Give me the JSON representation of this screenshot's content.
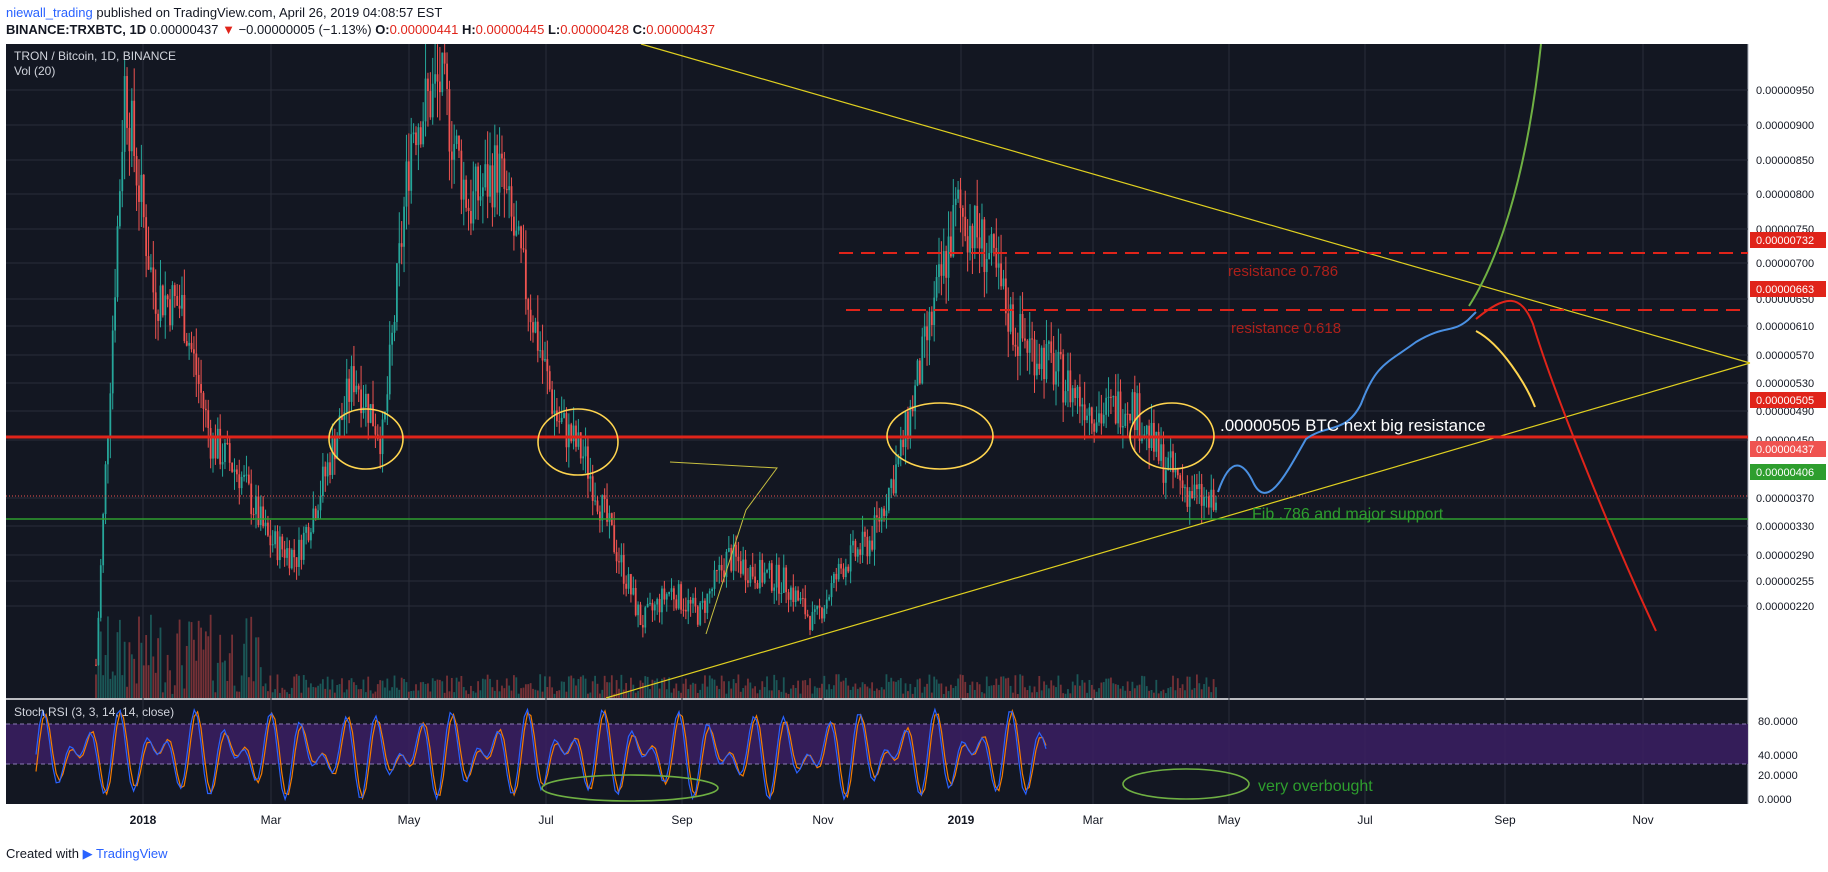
{
  "header": {
    "user": "niewall_trading",
    "published": "published on TradingView.com, April 26, 2019 04:08:57 EST",
    "symbol": "BINANCE:TRXBTC, 1D",
    "last": "0.00000437",
    "arrow": "▼",
    "change": "−0.00000005 (−1.13%)",
    "o_label": "O:",
    "o": "0.00000441",
    "h_label": "H:",
    "h": "0.00000445",
    "l_label": "L:",
    "l": "0.00000428",
    "c_label": "C:",
    "c": "0.00000437"
  },
  "chart": {
    "pane_title": "TRON / Bitcoin, 1D, BINANCE",
    "vol_label": "Vol (20)",
    "rsi_label": "Stoch RSI (3, 3, 14, 14, close)",
    "price_ticks": [
      "0.00000950",
      "0.00000900",
      "0.00000850",
      "0.00000800",
      "0.00000750",
      "0.00000700",
      "0.00000650",
      "0.00000610",
      "0.00000570",
      "0.00000530",
      "0.00000490",
      "0.00000450",
      "0.00000370",
      "0.00000330",
      "0.00000290",
      "0.00000255",
      "0.00000220"
    ],
    "time_ticks": [
      "2018",
      "Mar",
      "May",
      "Jul",
      "Sep",
      "Nov",
      "2019",
      "Mar",
      "May",
      "Jul",
      "Sep",
      "Nov"
    ],
    "rsi_ticks": [
      "80.0000",
      "40.0000",
      "20.0000",
      "0.0000"
    ],
    "price_badges": [
      {
        "text": "0.00000732",
        "color": "#e0241a"
      },
      {
        "text": "0.00000663",
        "color": "#e0241a"
      },
      {
        "text": "0.00000505",
        "color": "#e0241a"
      },
      {
        "text": "0.00000437",
        "color": "#ef5350"
      },
      {
        "text": "0.00000406",
        "color": "#2e9e2e"
      }
    ],
    "annotations": {
      "resistance_786": "resistance 0.786",
      "resistance_618": "resistance 0.618",
      "next_resistance": ".00000505 BTC next big resistance",
      "fib_support": "Fib .786 and major support",
      "overbought": "very overbought"
    },
    "colors": {
      "background": "#131722",
      "grid": "#2a2e39",
      "up": "#26a69a",
      "down": "#ef5350",
      "resistance_dash": "#e0241a",
      "support_line": "#2e9e2e",
      "trendline": "#e0d020",
      "rsi_band": "#3b1f63",
      "projection_blue": "#4a90e2",
      "projection_green": "#6fb043",
      "projection_red": "#e0241a",
      "projection_yellow": "#ffd54f"
    }
  },
  "chart_data": {
    "type": "candlestick",
    "x": [
      "2017-12-20",
      "2018-01-05",
      "2018-01-10",
      "2018-01-18",
      "2018-02-01",
      "2018-02-15",
      "2018-03-01",
      "2018-03-15",
      "2018-04-01",
      "2018-04-10",
      "2018-04-20",
      "2018-05-01",
      "2018-05-10",
      "2018-05-20",
      "2018-06-01",
      "2018-06-15",
      "2018-07-01",
      "2018-07-15",
      "2018-08-01",
      "2018-08-15",
      "2018-09-01",
      "2018-09-15",
      "2018-10-01",
      "2018-10-15",
      "2018-11-01",
      "2018-11-15",
      "2018-12-01",
      "2018-12-15",
      "2018-12-25",
      "2019-01-05",
      "2019-01-15",
      "2019-01-25",
      "2019-02-05",
      "2019-02-15",
      "2019-03-01",
      "2019-03-15",
      "2019-04-01",
      "2019-04-10",
      "2019-04-20",
      "2019-04-26"
    ],
    "close": [
      2.5e-06,
      9.5e-06,
      7e-06,
      6.8e-06,
      5.2e-06,
      4.8e-06,
      4e-06,
      3.8e-06,
      4.8e-06,
      6e-06,
      5.2e-06,
      9e-06,
      9.5e-06,
      8e-06,
      8.5e-06,
      7e-06,
      5.5e-06,
      5e-06,
      4e-06,
      3e-06,
      3.4e-06,
      3.1e-06,
      3.8e-06,
      3.6e-06,
      3.5e-06,
      3e-06,
      3.7e-06,
      4e-06,
      5e-06,
      6.5e-06,
      8e-06,
      7.5e-06,
      6.5e-06,
      6.2e-06,
      5.8e-06,
      5.5e-06,
      5.7e-06,
      5e-06,
      4.6e-06,
      4.37e-06
    ],
    "ylim": [
      2.1e-06,
      9.8e-06
    ],
    "levels": {
      "resistance_786": 7.32e-06,
      "resistance_618": 6.63e-06,
      "resistance": 5.05e-06,
      "last": 4.37e-06,
      "support": 4.06e-06
    },
    "title": "TRON / Bitcoin, 1D, BINANCE",
    "xlabel": "",
    "ylabel": ""
  }
}
